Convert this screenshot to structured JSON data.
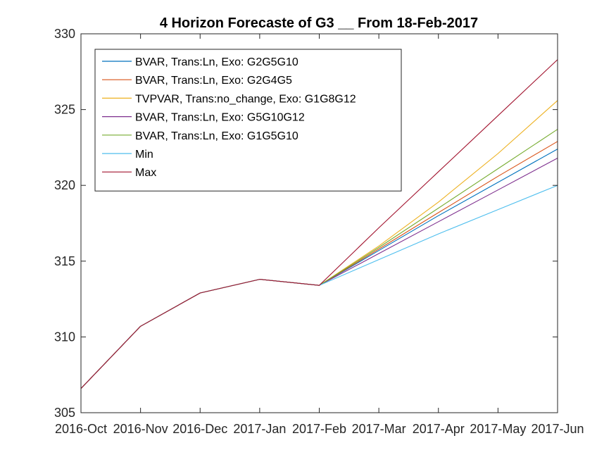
{
  "chart_data": {
    "type": "line",
    "title": "4 Horizon Forecaste of G3 __ From 18-Feb-2017",
    "xlabel": "",
    "ylabel": "",
    "x": [
      "2016-Oct",
      "2016-Nov",
      "2016-Dec",
      "2017-Jan",
      "2017-Feb",
      "2017-Mar",
      "2017-Apr",
      "2017-May",
      "2017-Jun"
    ],
    "ylim": [
      305,
      330
    ],
    "yticks": [
      "305",
      "310",
      "315",
      "320",
      "325",
      "330"
    ],
    "grid": false,
    "legend_position": "top-left",
    "series": [
      {
        "name": "BVAR, Trans:Ln, Exo: G2G5G10",
        "color": "#0072BD",
        "values": [
          306.6,
          310.7,
          312.9,
          313.8,
          313.4,
          315.7,
          318.0,
          320.2,
          322.4
        ]
      },
      {
        "name": "BVAR, Trans:Ln, Exo: G2G4G5",
        "color": "#D95319",
        "values": [
          306.6,
          310.7,
          312.9,
          313.8,
          313.4,
          315.8,
          318.2,
          320.6,
          322.9
        ]
      },
      {
        "name": "TVPVAR, Trans:no_change, Exo: G1G8G12",
        "color": "#EDB120",
        "values": [
          306.6,
          310.7,
          312.9,
          313.8,
          313.4,
          316.0,
          318.9,
          322.1,
          325.6
        ]
      },
      {
        "name": "BVAR, Trans:Ln, Exo: G5G10G12",
        "color": "#7E2F8E",
        "values": [
          306.6,
          310.7,
          312.9,
          313.8,
          313.4,
          315.5,
          317.6,
          319.7,
          321.8
        ]
      },
      {
        "name": "BVAR, Trans:Ln, Exo: G1G5G10",
        "color": "#77AC30",
        "values": [
          306.6,
          310.7,
          312.9,
          313.8,
          313.4,
          315.9,
          318.5,
          321.1,
          323.7
        ]
      },
      {
        "name": "Min",
        "color": "#4DBEEE",
        "values": [
          306.6,
          310.7,
          312.9,
          313.8,
          313.4,
          315.1,
          316.8,
          318.4,
          320.0
        ]
      },
      {
        "name": "Max",
        "color": "#A2142F",
        "values": [
          306.6,
          310.7,
          312.9,
          313.8,
          313.4,
          317.2,
          320.9,
          324.6,
          328.3
        ]
      }
    ]
  }
}
